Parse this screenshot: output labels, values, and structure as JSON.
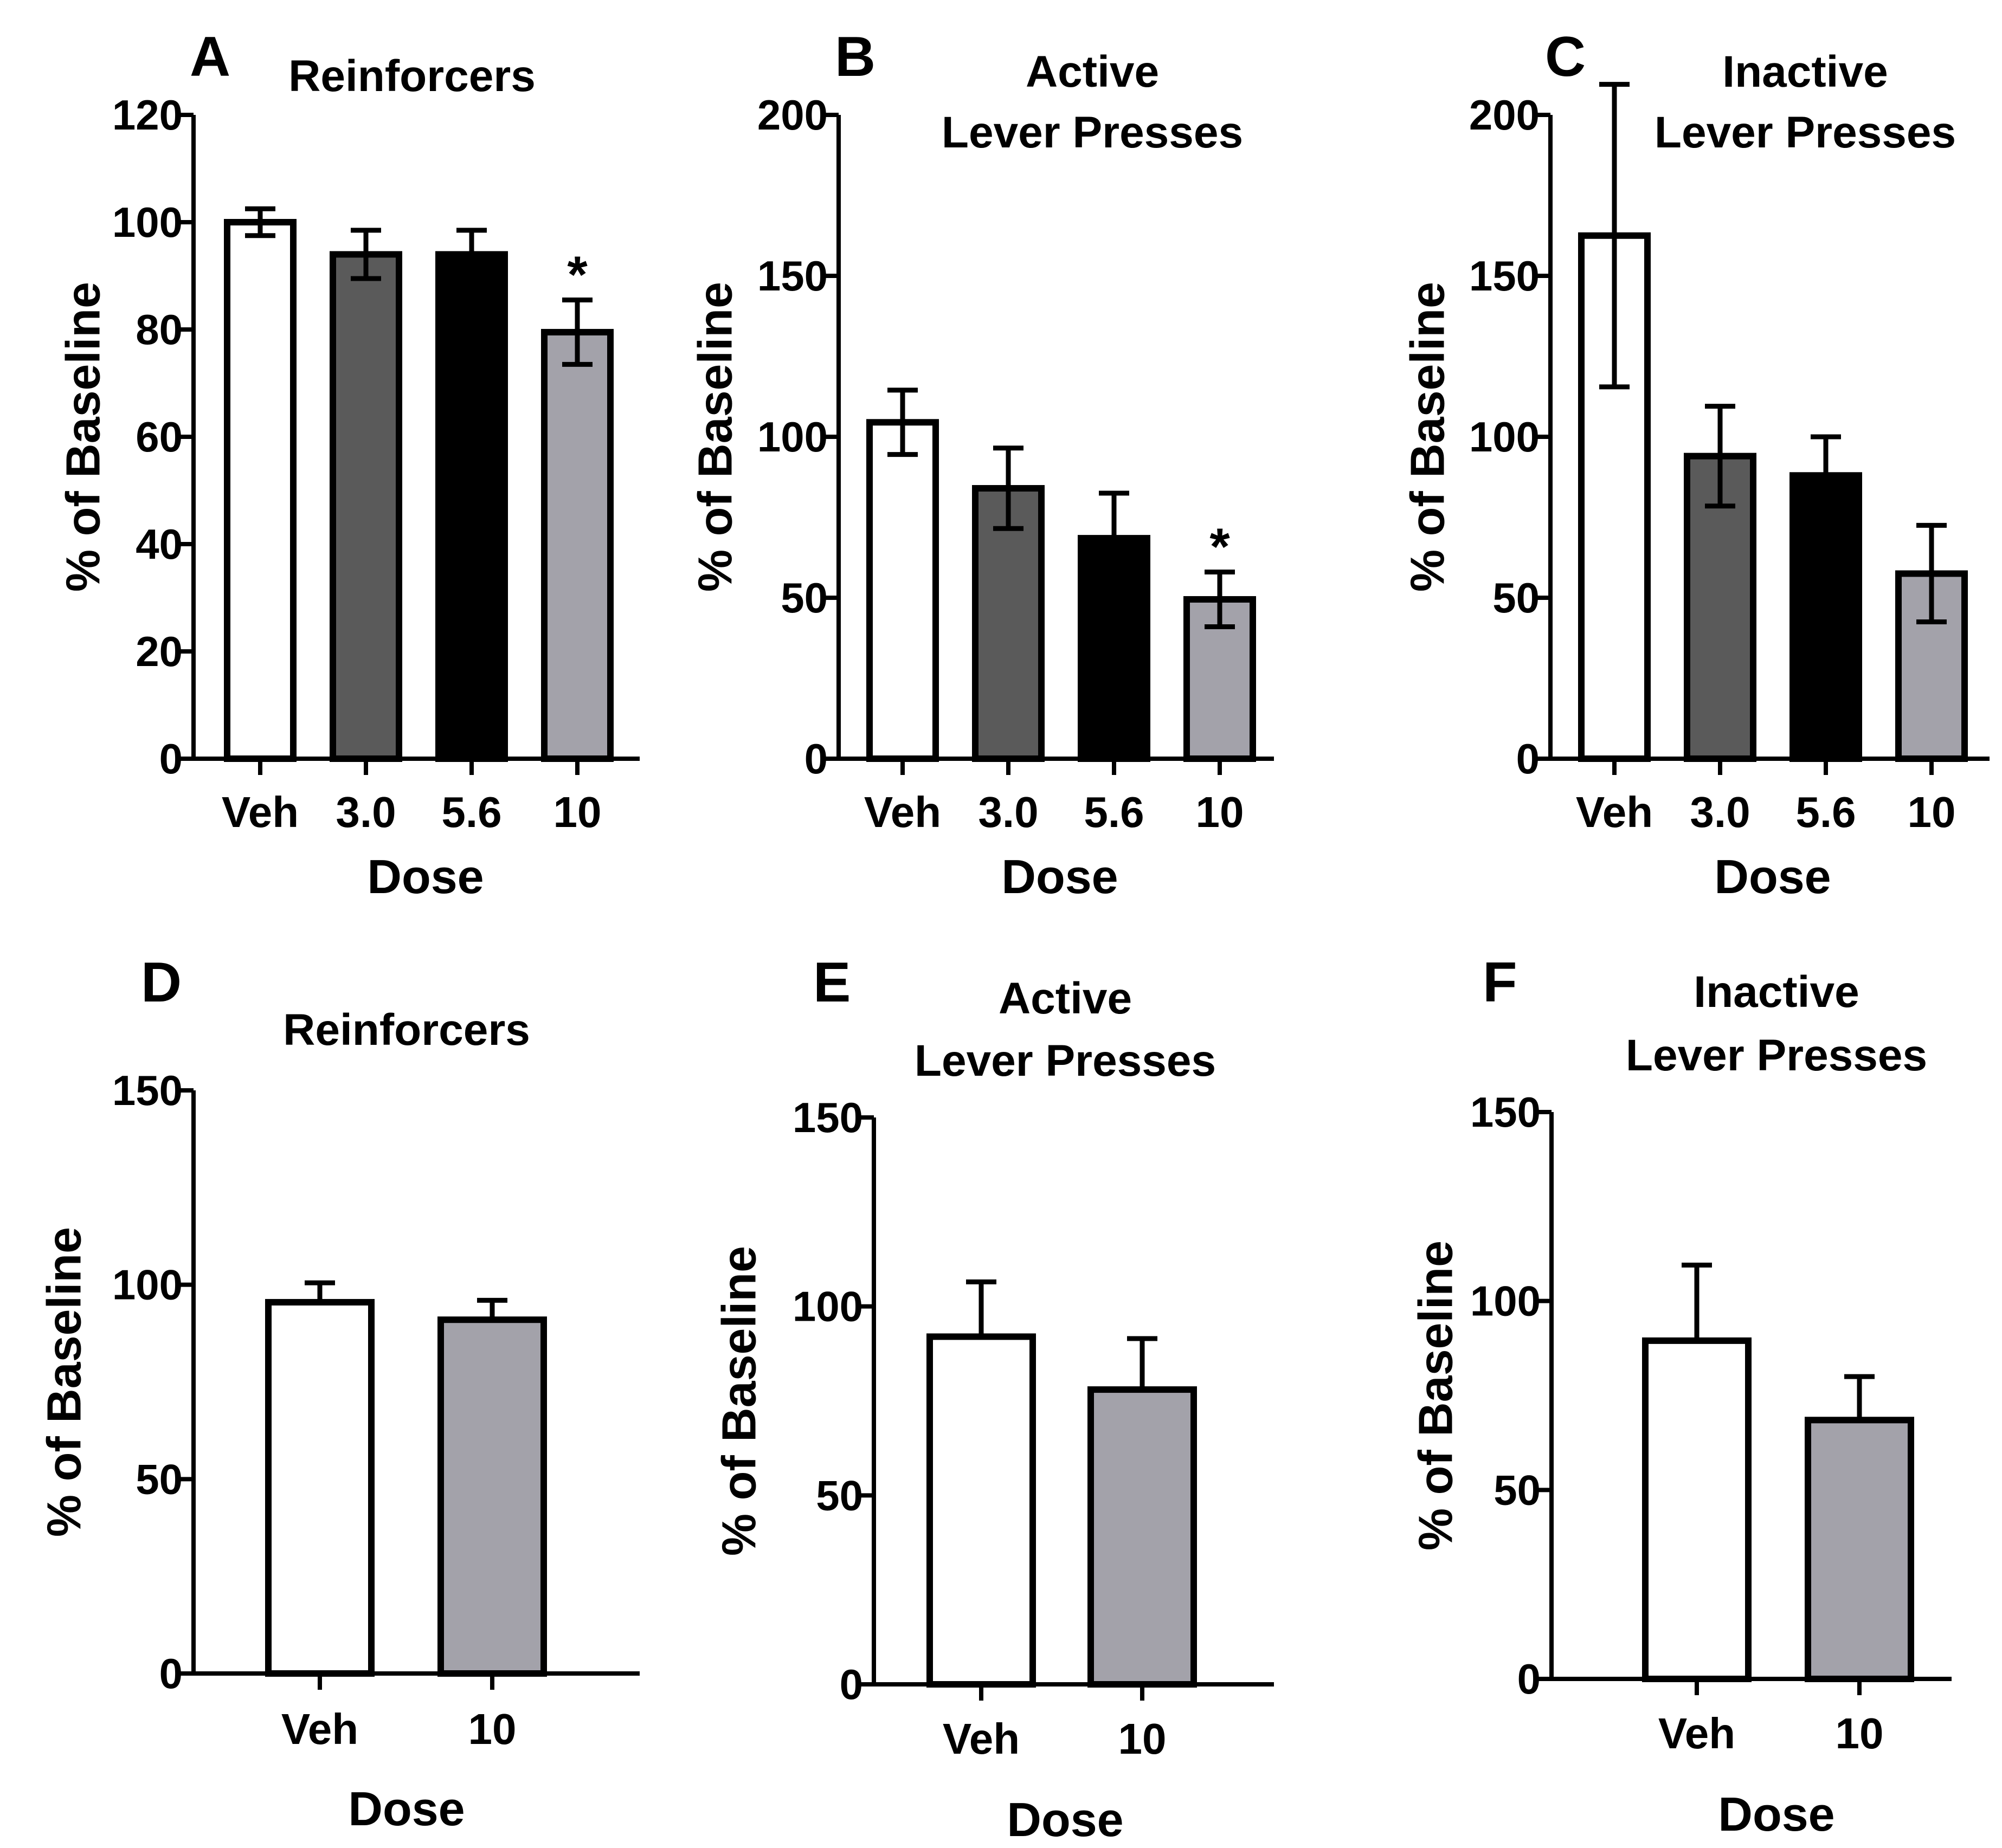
{
  "chart_data": [
    {
      "id": "A",
      "type": "bar",
      "letter": "A",
      "title_lines": [
        "Reinforcers"
      ],
      "xlabel": "Dose",
      "ylabel": "% of Baseline",
      "categories": [
        "Veh",
        "3.0",
        "5.6",
        "10"
      ],
      "values": [
        100,
        94,
        94,
        79.5
      ],
      "errors": [
        2.5,
        4.5,
        4.5,
        6
      ],
      "error_style": "both",
      "ylim": [
        0,
        120
      ],
      "yticks": [
        0,
        20,
        40,
        60,
        80,
        100,
        120
      ],
      "significance": [
        "",
        "",
        "",
        "*"
      ],
      "colors": [
        "#ffffff",
        "#5a5a5a",
        "#000000",
        "#a3a2aa"
      ]
    },
    {
      "id": "B",
      "type": "bar",
      "letter": "B",
      "title_lines": [
        "Active",
        "Lever Presses"
      ],
      "xlabel": "Dose",
      "ylabel": "% of Baseline",
      "categories": [
        "Veh",
        "3.0",
        "5.6",
        "10"
      ],
      "values": [
        104.5,
        84,
        68.5,
        49.5
      ],
      "errors": [
        10,
        12.5,
        14,
        8.5
      ],
      "error_style": "mixed",
      "ylim": [
        0,
        200
      ],
      "yticks": [
        0,
        50,
        100,
        150,
        200
      ],
      "significance": [
        "",
        "",
        "",
        "*"
      ],
      "colors": [
        "#ffffff",
        "#5a5a5a",
        "#000000",
        "#a3a2aa"
      ]
    },
    {
      "id": "C",
      "type": "bar",
      "letter": "C",
      "title_lines": [
        "Inactive",
        "Lever Presses"
      ],
      "xlabel": "Dose",
      "ylabel": "% of Baseline",
      "categories": [
        "Veh",
        "3.0",
        "5.6",
        "10"
      ],
      "values": [
        162.5,
        94,
        88,
        57.5
      ],
      "errors": [
        47,
        15.5,
        12,
        15
      ],
      "error_style": "mixed",
      "ylim": [
        0,
        200
      ],
      "yticks": [
        0,
        50,
        100,
        150,
        200
      ],
      "significance": [
        "",
        "",
        "",
        ""
      ],
      "colors": [
        "#ffffff",
        "#5a5a5a",
        "#000000",
        "#a3a2aa"
      ]
    },
    {
      "id": "D",
      "type": "bar",
      "letter": "D",
      "title_lines": [
        "Reinforcers"
      ],
      "xlabel": "Dose",
      "ylabel": "% of Baseline",
      "categories": [
        "Veh",
        "10"
      ],
      "values": [
        95.5,
        91
      ],
      "errors": [
        5,
        5
      ],
      "error_style": "up",
      "ylim": [
        0,
        150
      ],
      "yticks": [
        0,
        50,
        100,
        150
      ],
      "significance": [
        "",
        ""
      ],
      "colors": [
        "#ffffff",
        "#a3a2aa"
      ]
    },
    {
      "id": "E",
      "type": "bar",
      "letter": "E",
      "title_lines": [
        "Active",
        "Lever Presses"
      ],
      "xlabel": "Dose",
      "ylabel": "% of Baseline",
      "categories": [
        "Veh",
        "10"
      ],
      "values": [
        92,
        78
      ],
      "errors": [
        14.5,
        13.5
      ],
      "error_style": "up",
      "ylim": [
        0,
        150
      ],
      "yticks": [
        0,
        50,
        100,
        150
      ],
      "significance": [
        "",
        ""
      ],
      "colors": [
        "#ffffff",
        "#a3a2aa"
      ]
    },
    {
      "id": "F",
      "type": "bar",
      "letter": "F",
      "title_lines": [
        "Inactive",
        "Lever Presses"
      ],
      "xlabel": "Dose",
      "ylabel": "% of Baseline",
      "categories": [
        "Veh",
        "10"
      ],
      "values": [
        89.5,
        68.5
      ],
      "errors": [
        20,
        11.5
      ],
      "error_style": "up",
      "ylim": [
        0,
        150
      ],
      "yticks": [
        0,
        50,
        100,
        150
      ],
      "significance": [
        "",
        ""
      ],
      "colors": [
        "#ffffff",
        "#a3a2aa"
      ]
    }
  ]
}
